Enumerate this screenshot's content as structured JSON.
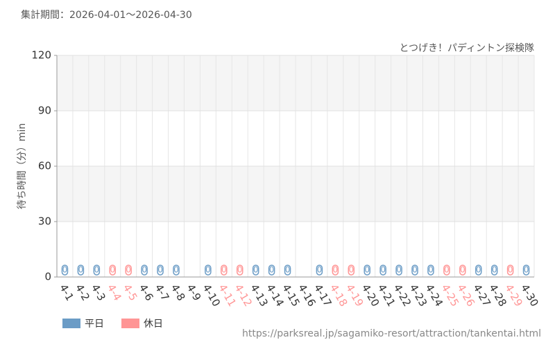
{
  "chart_data": {
    "type": "bar",
    "title": "集計期間：2026-04-01～2026-04-30",
    "subtitle": "とつげき！パディントン探検隊",
    "y_label": "待ち時間（分）min",
    "source": "https://parksreal.jp/sagamiko-resort/attraction/tankentai.html",
    "categories": [
      "4-1",
      "4-2",
      "4-3",
      "4-4",
      "4-5",
      "4-6",
      "4-7",
      "4-8",
      "4-9",
      "4-10",
      "4-11",
      "4-12",
      "4-13",
      "4-14",
      "4-15",
      "4-16",
      "4-17",
      "4-18",
      "4-19",
      "4-20",
      "4-21",
      "4-22",
      "4-23",
      "4-24",
      "4-25",
      "4-26",
      "4-27",
      "4-28",
      "4-29",
      "4-30"
    ],
    "series": [
      {
        "name": "平日",
        "color": "#6b9cc6",
        "values": [
          0,
          0,
          0,
          null,
          null,
          0,
          0,
          0,
          null,
          0,
          null,
          null,
          0,
          0,
          0,
          null,
          0,
          null,
          null,
          0,
          0,
          0,
          0,
          0,
          null,
          null,
          0,
          0,
          null,
          0
        ]
      },
      {
        "name": "休日",
        "color": "#ff9595",
        "values": [
          null,
          null,
          null,
          0,
          0,
          null,
          null,
          null,
          null,
          null,
          0,
          0,
          null,
          null,
          null,
          null,
          null,
          0,
          0,
          null,
          null,
          null,
          null,
          null,
          0,
          0,
          null,
          null,
          0,
          null
        ]
      }
    ],
    "ylim": [
      0,
      120
    ],
    "yticks": [
      0,
      30,
      60,
      90,
      120
    ],
    "grid": true
  }
}
